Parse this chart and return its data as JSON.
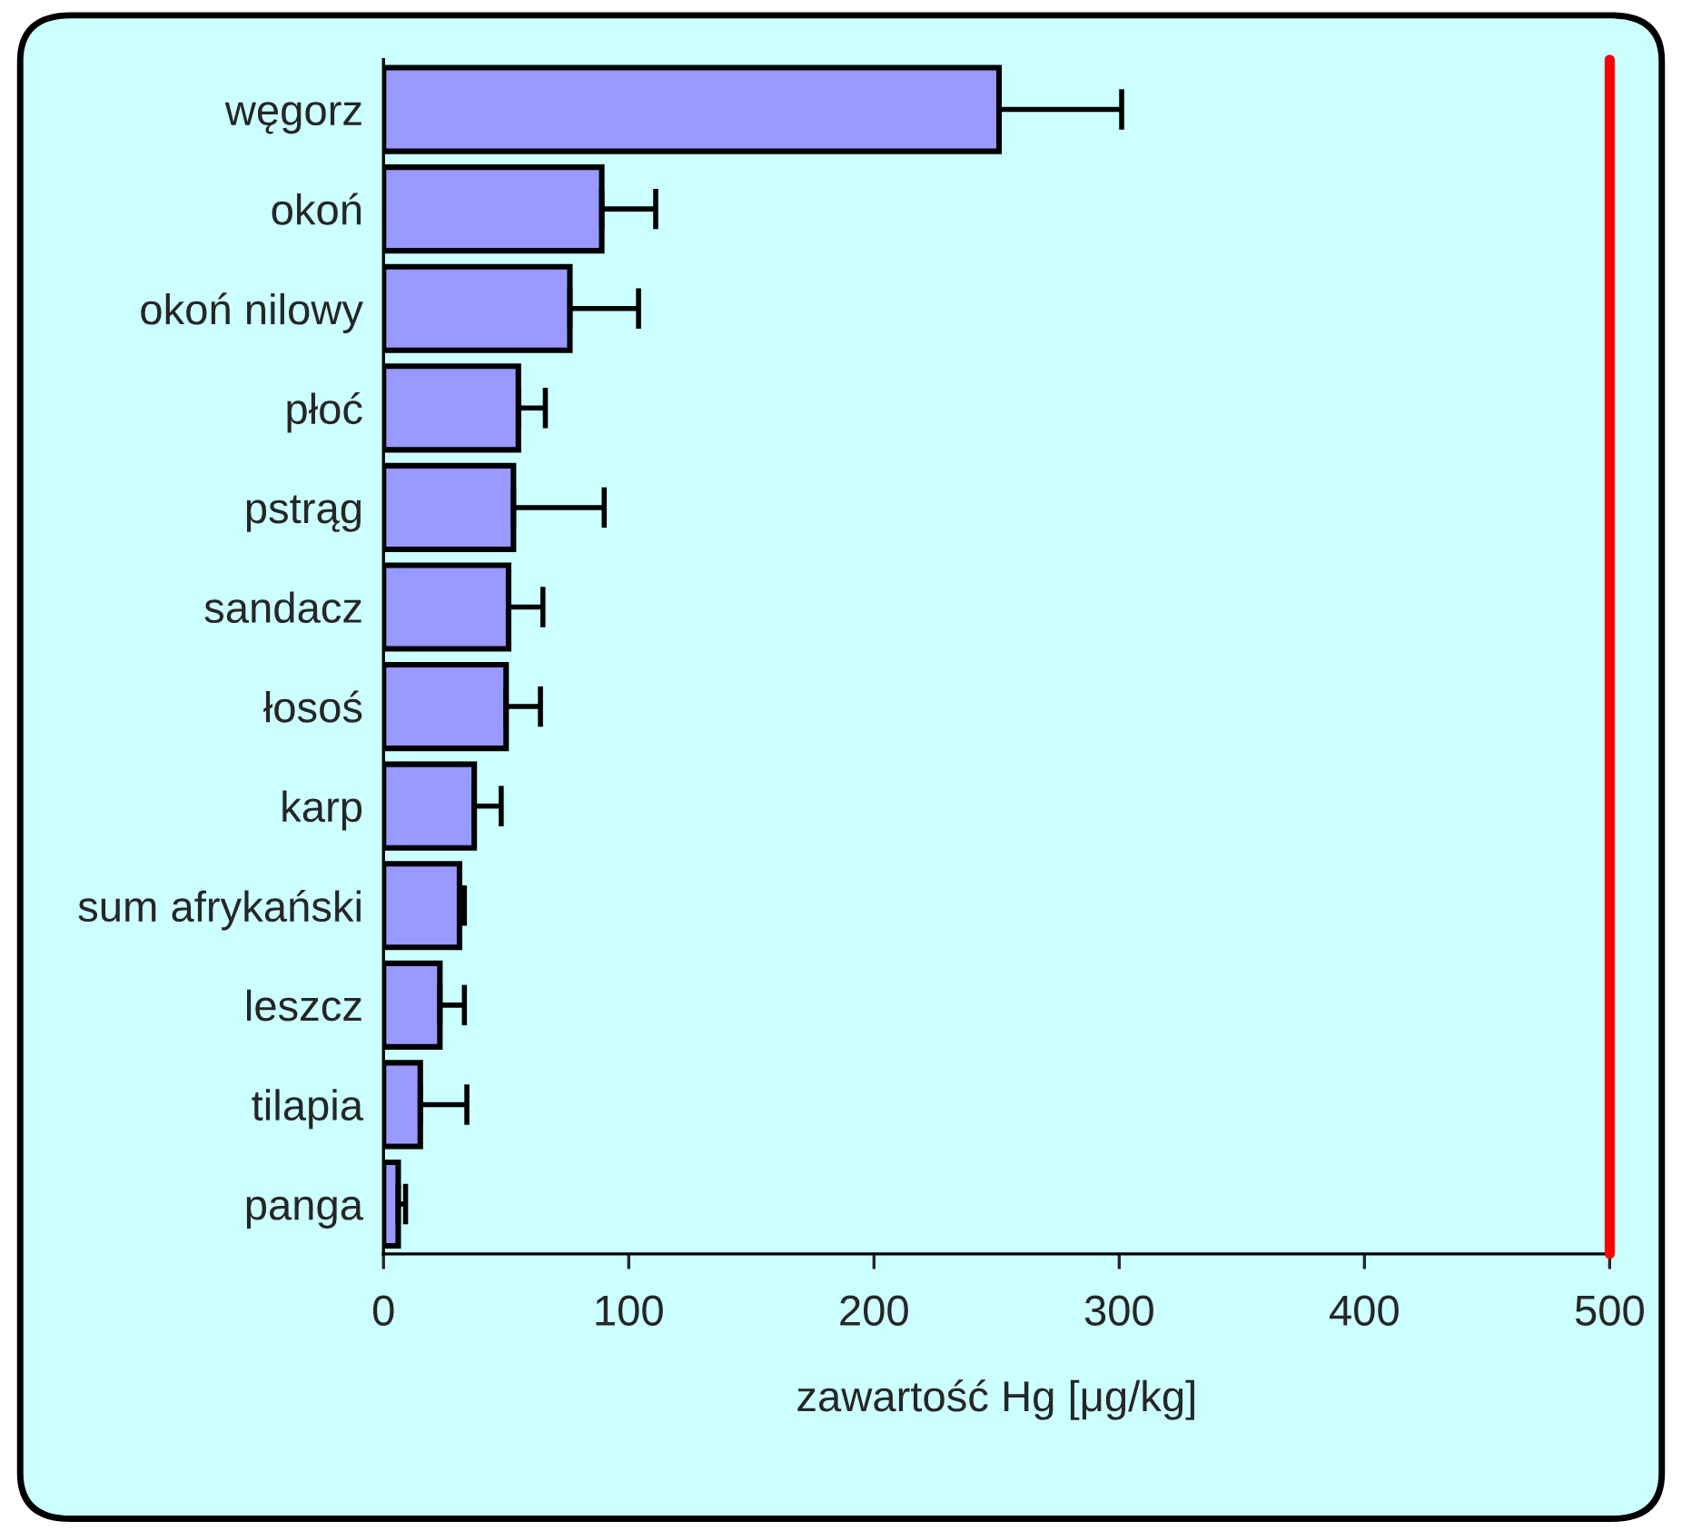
{
  "chart_data": {
    "type": "bar",
    "orientation": "horizontal",
    "xlabel": "zawartość Hg [μg/kg]",
    "categories": [
      "węgorz",
      "okoń",
      "okoń nilowy",
      "płoć",
      "pstrąg",
      "sandacz",
      "łosoś",
      "karp",
      "sum afrykański",
      "leszcz",
      "tilapia",
      "panga"
    ],
    "values": [
      251,
      89,
      76,
      55,
      53,
      51,
      50,
      37,
      31,
      23,
      15,
      6
    ],
    "errors": [
      [
        251,
        301
      ],
      [
        89,
        111
      ],
      [
        76,
        104
      ],
      [
        55,
        66
      ],
      [
        53,
        90
      ],
      [
        51,
        65
      ],
      [
        50,
        64
      ],
      [
        37,
        48
      ],
      [
        31,
        33
      ],
      [
        23,
        33
      ],
      [
        15,
        34
      ],
      [
        6,
        9
      ]
    ],
    "color": "#9999ff",
    "xlim": [
      0,
      500
    ],
    "xticks": [
      0,
      100,
      200,
      300,
      400,
      500
    ],
    "ref_lines": [
      {
        "axis": "x",
        "value": 500,
        "color": "#ff0000"
      }
    ],
    "grid": false,
    "legend": false
  }
}
